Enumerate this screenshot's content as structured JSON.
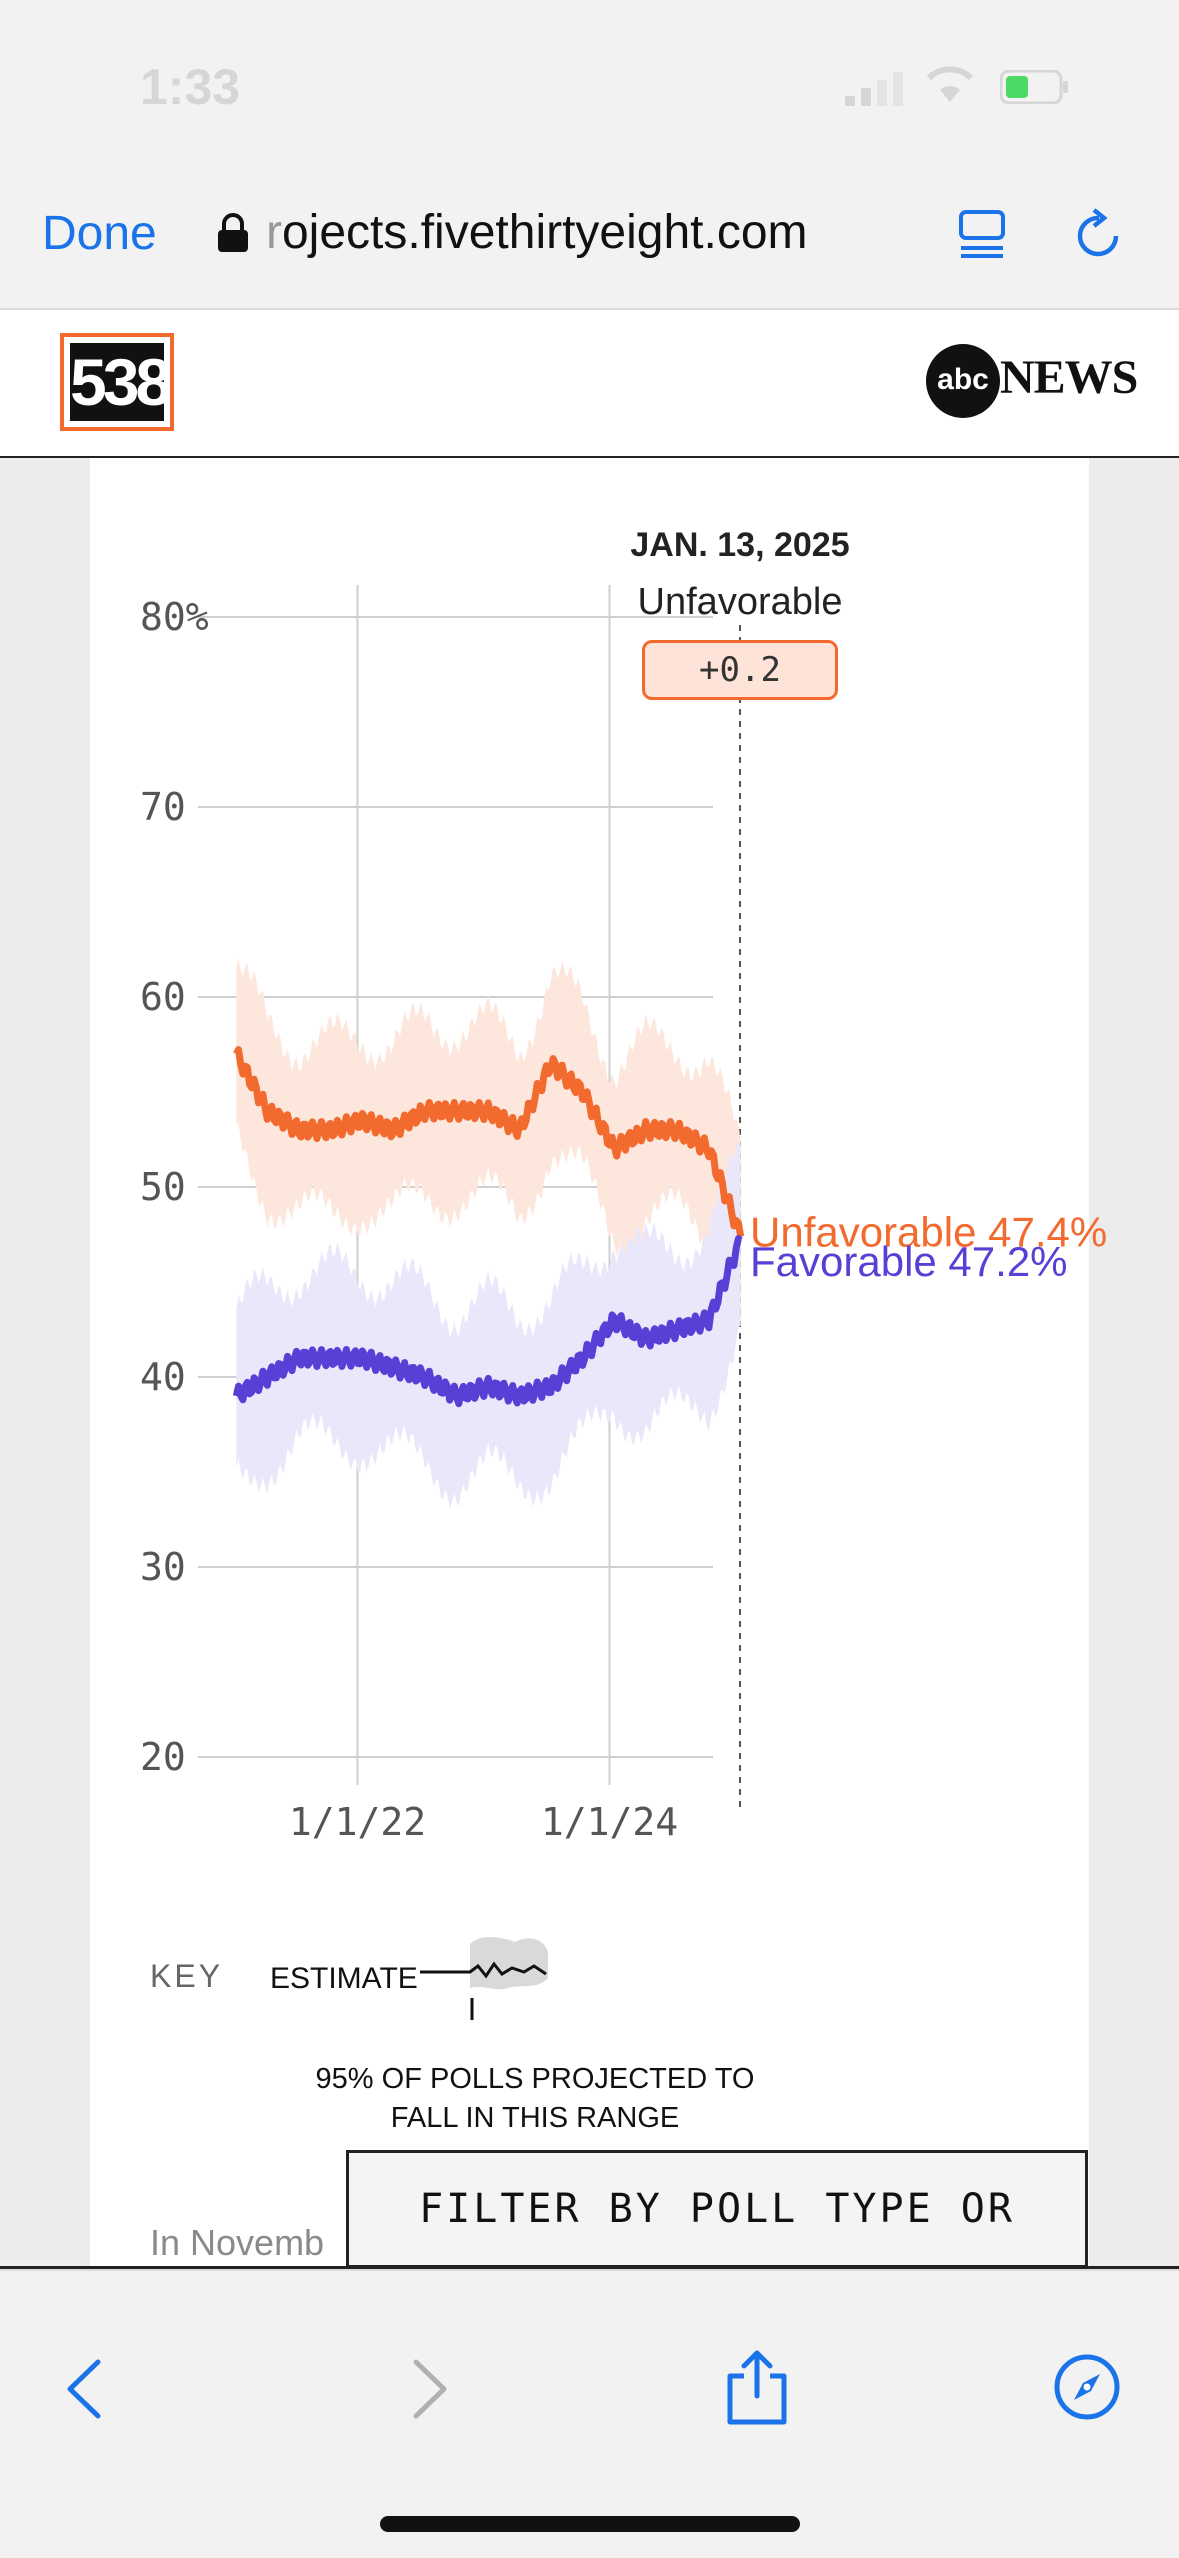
{
  "status_bar": {
    "time": "1:33"
  },
  "browser": {
    "done_label": "Done",
    "url_faded": "r",
    "url_main": "ojects.fivethirtyeight.com"
  },
  "site": {
    "logo_text": "538",
    "partner_abc": "abc",
    "partner_news": "NEWS"
  },
  "tooltip": {
    "date": "JAN. 13, 2025",
    "series": "Unfavorable",
    "diff": "+0.2"
  },
  "chart_data": {
    "type": "line",
    "y_ticks": [
      "80%",
      "70",
      "60",
      "50",
      "40",
      "30",
      "20"
    ],
    "y_tick_values": [
      80,
      70,
      60,
      50,
      40,
      30,
      20
    ],
    "ylim": [
      20,
      80
    ],
    "x_ticks": [
      "1/1/22",
      "1/1/24"
    ],
    "x_range": [
      "2021-01-20",
      "2025-01-13"
    ],
    "grid": true,
    "series": [
      {
        "name": "Unfavorable",
        "color": "#f26a2e",
        "band_color": "#fde6dc",
        "end_label": "Unfavorable 47.4%",
        "x": [
          "2021-01",
          "2021-04",
          "2021-07",
          "2021-10",
          "2022-01",
          "2022-04",
          "2022-07",
          "2022-10",
          "2023-01",
          "2023-04",
          "2023-07",
          "2023-10",
          "2024-01",
          "2024-04",
          "2024-07",
          "2024-10",
          "2025-01"
        ],
        "values": [
          57,
          54,
          53,
          53,
          53.5,
          53,
          54,
          54,
          54,
          53,
          56.5,
          55,
          52,
          53,
          53,
          52,
          47.4
        ]
      },
      {
        "name": "Favorable",
        "color": "#5a3fd6",
        "band_color": "#ebe7fb",
        "end_label": "Favorable 47.2%",
        "x": [
          "2021-01",
          "2021-04",
          "2021-07",
          "2021-10",
          "2022-01",
          "2022-04",
          "2022-07",
          "2022-10",
          "2023-01",
          "2023-04",
          "2023-07",
          "2023-10",
          "2024-01",
          "2024-04",
          "2024-07",
          "2024-10",
          "2025-01"
        ],
        "values": [
          39,
          40,
          41,
          41,
          41,
          40.5,
          40,
          39,
          39.5,
          39,
          39.5,
          41,
          43,
          42,
          42.5,
          43,
          47.2
        ]
      }
    ]
  },
  "key": {
    "label": "KEY",
    "estimate": "ESTIMATE",
    "range_line1": "95% OF POLLS PROJECTED TO",
    "range_line2": "FALL IN THIS RANGE"
  },
  "intro_text": "In Novemb",
  "filter_button": "FILTER BY POLL TYPE OR STATE",
  "toolbar": {
    "icons": [
      "back-icon",
      "forward-icon",
      "share-icon",
      "compass-icon"
    ]
  }
}
